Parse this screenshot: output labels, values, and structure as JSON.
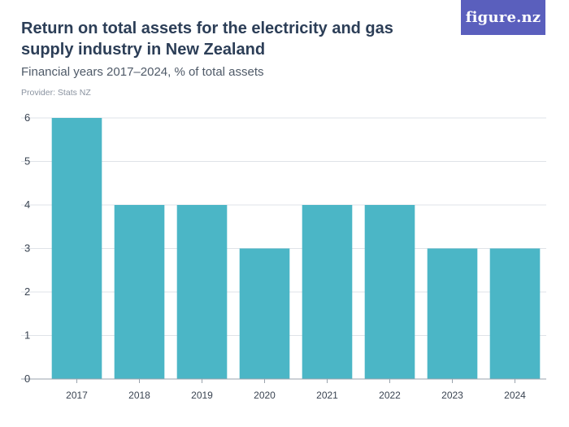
{
  "header": {
    "title": "Return on total assets for the electricity and gas supply industry in New Zealand",
    "subtitle": "Financial years 2017–2024, % of total assets",
    "provider": "Provider: Stats NZ"
  },
  "logo": {
    "text": "figure.nz",
    "background": "#5a5fbd"
  },
  "chart_data": {
    "type": "bar",
    "title": "Return on total assets for the electricity and gas supply industry in New Zealand",
    "subtitle": "Financial years 2017–2024, % of total assets",
    "categories": [
      "2017",
      "2018",
      "2019",
      "2020",
      "2021",
      "2022",
      "2023",
      "2024"
    ],
    "values": [
      6,
      4,
      4,
      3,
      4,
      4,
      3,
      3
    ],
    "xlabel": "",
    "ylabel": "",
    "ylim": [
      0,
      6
    ],
    "yticks": [
      "0",
      "1",
      "2",
      "3",
      "4",
      "5",
      "6"
    ],
    "grid": true,
    "bar_color": "#4bb6c6",
    "gridline_color": "#dfe3e8",
    "axis_color": "#9aa3ad"
  }
}
